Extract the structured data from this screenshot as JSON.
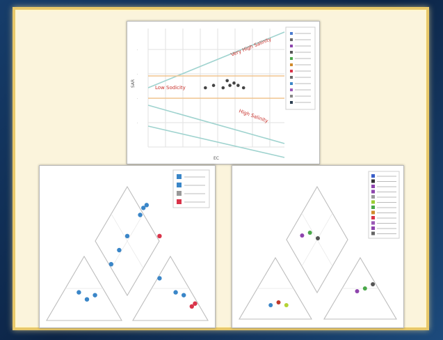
{
  "colors": {
    "border_gold": "#e8c86a",
    "mat": "#fbf4dc",
    "blue_point": "#3a86c8",
    "red_point": "#d9344a",
    "line_cyan": "#9fd3cf",
    "line_orange": "#f0c38e",
    "line_gray": "#cfcfcf"
  },
  "chart_data": [
    {
      "type": "scatter",
      "title": "",
      "xlabel": "EC",
      "ylabel": "SAR",
      "annotations": [
        "Low Sodicity",
        "Very High Salinity",
        "High Salinity"
      ],
      "legend": {
        "placement": "right",
        "entries": [
          "",
          "",
          "",
          "",
          "",
          "",
          "",
          "",
          "",
          "",
          "",
          ""
        ]
      },
      "series": [
        {
          "values": [
            [
              0.42,
              0.5
            ],
            [
              0.48,
              0.52
            ],
            [
              0.55,
              0.5
            ],
            [
              0.6,
              0.52
            ],
            [
              0.63,
              0.54
            ],
            [
              0.66,
              0.52
            ],
            [
              0.7,
              0.5
            ],
            [
              0.58,
              0.56
            ]
          ]
        }
      ]
    },
    {
      "type": "scatter",
      "title": "",
      "xlabel": "",
      "legend": {
        "placement": "top-right",
        "entries": [
          "",
          "",
          "",
          ""
        ]
      },
      "series": [
        {
          "values": [
            [
              0.6,
              0.8
            ],
            [
              0.62,
              0.82
            ],
            [
              0.58,
              0.75
            ],
            [
              0.5,
              0.6
            ],
            [
              0.45,
              0.5
            ],
            [
              0.4,
              0.4
            ],
            [
              0.2,
              0.2
            ],
            [
              0.25,
              0.15
            ],
            [
              0.3,
              0.18
            ],
            [
              0.8,
              0.2
            ],
            [
              0.85,
              0.18
            ],
            [
              0.7,
              0.3
            ]
          ]
        },
        {
          "values": [
            [
              0.9,
              0.1
            ],
            [
              0.92,
              0.12
            ],
            [
              0.7,
              0.6
            ]
          ]
        }
      ]
    },
    {
      "type": "scatter",
      "title": "",
      "xlabel": "",
      "legend": {
        "placement": "top-right",
        "entries": [
          "",
          "",
          "",
          "",
          "",
          "",
          "",
          "",
          "",
          "",
          "",
          ""
        ]
      },
      "series": [
        {
          "values": [
            [
              0.4,
              0.6
            ],
            [
              0.45,
              0.62
            ],
            [
              0.5,
              0.58
            ],
            [
              0.2,
              0.1
            ],
            [
              0.25,
              0.12
            ],
            [
              0.3,
              0.1
            ],
            [
              0.75,
              0.2
            ],
            [
              0.8,
              0.22
            ],
            [
              0.85,
              0.25
            ]
          ]
        }
      ]
    }
  ]
}
